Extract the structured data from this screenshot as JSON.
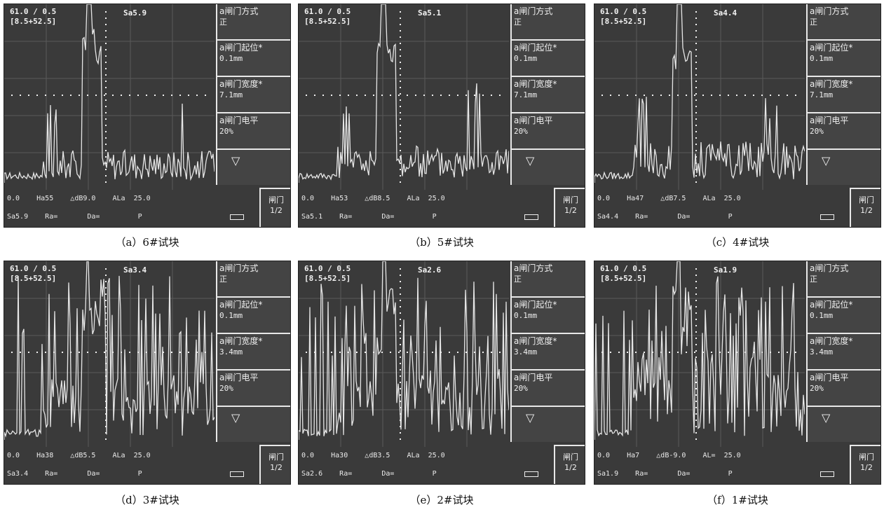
{
  "panels": [
    {
      "hdr1": "61.0 / 0.5",
      "hdr2": "[8.5+52.5]",
      "sa": "Sa5.9",
      "m1k": "a闸门方式",
      "m1v": "正",
      "m2k": "a闸门起位*",
      "m2v": "0.1mm",
      "m3k": "a闸门宽度*",
      "m3v": "7.1mm",
      "m4k": "a闸门电平",
      "m4v": "20%",
      "tri": "▽",
      "s1": "0.0    Ha55    △dB9.0    ALa  25.0",
      "s2": "Sa5.9    Ra=       Da=         P",
      "g1": "闸门",
      "g2": "1/2",
      "caption": "（a）6#试块"
    },
    {
      "hdr1": "61.0 / 0.5",
      "hdr2": "[8.5+52.5]",
      "sa": "Sa5.1",
      "m1k": "a闸门方式",
      "m1v": "正",
      "m2k": "a闸门起位*",
      "m2v": "0.1mm",
      "m3k": "a闸门宽度*",
      "m3v": "7.1mm",
      "m4k": "a闸门电平",
      "m4v": "20%",
      "tri": "▽",
      "s1": "0.0    Ha53    △dB8.5    ALa  25.0",
      "s2": "Sa5.1    Ra=       Da=         P",
      "g1": "闸门",
      "g2": "1/2",
      "caption": "（b）5#试块"
    },
    {
      "hdr1": "61.0 / 0.5",
      "hdr2": "[8.5+52.5]",
      "sa": "Sa4.4",
      "m1k": "a闸门方式",
      "m1v": "正",
      "m2k": "a闸门起位*",
      "m2v": "0.1mm",
      "m3k": "a闸门宽度*",
      "m3v": "7.1mm",
      "m4k": "a闸门电平",
      "m4v": "20%",
      "tri": "▽",
      "s1": "0.0    Ha47    △dB7.5    ALa  25.0",
      "s2": "Sa4.4    Ra=       Da=         P",
      "g1": "闸门",
      "g2": "1/2",
      "caption": "（c）4#试块"
    },
    {
      "hdr1": "61.0 / 0.5",
      "hdr2": "[8.5+52.5]",
      "sa": "Sa3.4",
      "m1k": "a闸门方式",
      "m1v": "正",
      "m2k": "a闸门起位*",
      "m2v": "0.1mm",
      "m3k": "a闸门宽度*",
      "m3v": "3.4mm",
      "m4k": "a闸门电平",
      "m4v": "20%",
      "tri": "▽",
      "s1": "0.0    Ha38    △dB5.5    ALa  25.0",
      "s2": "Sa3.4    Ra=       Da=         P",
      "g1": "闸门",
      "g2": "1/2",
      "caption": "（d）3#试块"
    },
    {
      "hdr1": "61.0 / 0.5",
      "hdr2": "[8.5+52.5]",
      "sa": "Sa2.6",
      "m1k": "a闸门方式",
      "m1v": "正",
      "m2k": "a闸门起位*",
      "m2v": "0.1mm",
      "m3k": "a闸门宽度*",
      "m3v": "3.4mm",
      "m4k": "a闸门电平",
      "m4v": "20%",
      "tri": "▽",
      "s1": "0.0    Ha30    △dB3.5    ALa  25.0",
      "s2": "Sa2.6    Ra=       Da=         P",
      "g1": "闸门",
      "g2": "1/2",
      "caption": "（e）2#试块"
    },
    {
      "hdr1": "61.0 / 0.5",
      "hdr2": "[8.5+52.5]",
      "sa": "Sa1.9",
      "m1k": "a闸门方式",
      "m1v": "正",
      "m2k": "a闸门起位*",
      "m2v": "0.1mm",
      "m3k": "a闸门宽度*",
      "m3v": "3.4mm",
      "m4k": "a闸门电平",
      "m4v": "20%",
      "tri": "▽",
      "s1": "0.0    Ha7    △dB-9.0    AL=  25.0",
      "s2": "Sa1.9    Ra=       Da=         P",
      "g1": "闸门",
      "g2": "1/2",
      "caption": "（f）1#试块"
    }
  ]
}
